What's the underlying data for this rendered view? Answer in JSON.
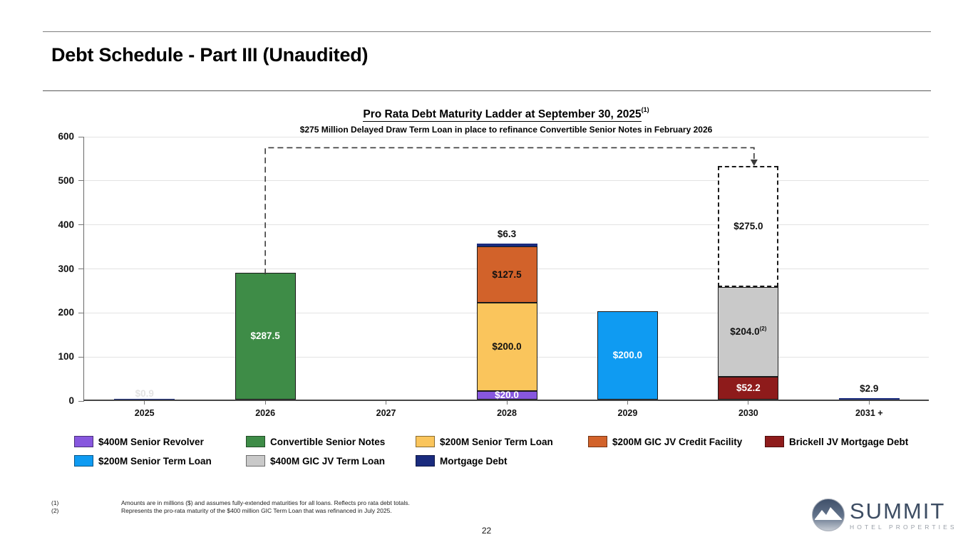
{
  "page": {
    "title": "Debt Schedule - Part III (Unaudited)",
    "page_number": "22",
    "footnotes": [
      {
        "marker": "(1)",
        "text": "Amounts are in millions ($) and assumes fully-extended maturities for all loans. Reflects pro rata debt totals."
      },
      {
        "marker": "(2)",
        "text": "Represents the pro-rata maturity of the $400 million GIC Term Loan that was refinanced in July 2025."
      }
    ],
    "logo": {
      "name": "SUMMIT",
      "subtitle": "HOTEL PROPERTIES"
    }
  },
  "chart_data": {
    "type": "bar",
    "stacked": true,
    "title": "Pro Rata Debt Maturity Ladder at September 30, 2025",
    "title_superscript": "(1)",
    "subtitle": "$275 Million Delayed Draw Term Loan in place to refinance Convertible Senior Notes in February 2026",
    "ylabel": "",
    "xlabel": "",
    "ylim": [
      0,
      600
    ],
    "yticks": [
      0,
      100,
      200,
      300,
      400,
      500,
      600
    ],
    "grid": "horizontal",
    "categories": [
      "2025",
      "2026",
      "2027",
      "2028",
      "2029",
      "2030",
      "2031 +"
    ],
    "bars": [
      {
        "category": "2025",
        "segments": [
          {
            "series": "Mortgage Debt",
            "value": 0.9,
            "color": "#1A2B7E",
            "label": "$0.9",
            "label_color": "#e3e3e3",
            "label_pos": "base"
          }
        ]
      },
      {
        "category": "2026",
        "segments": [
          {
            "series": "Convertible Senior Notes",
            "value": 287.5,
            "color": "#3E8C47",
            "label": "$287.5",
            "label_color": "#ffffff",
            "label_pos": "center"
          }
        ]
      },
      {
        "category": "2027",
        "segments": []
      },
      {
        "category": "2028",
        "segments": [
          {
            "series": "$400M Senior Revolver",
            "value": 20.0,
            "color": "#8757DE",
            "label": "$20.0",
            "label_color": "#ffffff",
            "label_pos": "center"
          },
          {
            "series": "$200M Senior Term Loan",
            "value": 200.0,
            "color": "#FAC55C",
            "label": "$200.0",
            "label_color": "#111111",
            "label_pos": "center"
          },
          {
            "series": "$200M GIC JV Credit Facility",
            "value": 127.5,
            "color": "#D2622A",
            "label": "$127.5",
            "label_color": "#111111",
            "label_pos": "center"
          },
          {
            "series": "Mortgage Debt",
            "value": 6.3,
            "color": "#1A2B7E",
            "label": "$6.3",
            "label_color": "#111111",
            "label_pos": "above"
          }
        ]
      },
      {
        "category": "2029",
        "segments": [
          {
            "series": "$200M Senior Term Loan",
            "value": 200.0,
            "color": "#0F9BF2",
            "label": "$200.0",
            "label_color": "#ffffff",
            "label_pos": "center"
          }
        ]
      },
      {
        "category": "2030",
        "segments": [
          {
            "series": "Brickell JV Mortgage Debt",
            "value": 52.2,
            "color": "#8E1B1B",
            "label": "$52.2",
            "label_color": "#ffffff",
            "label_pos": "center"
          },
          {
            "series": "$400M GIC JV Term Loan",
            "value": 204.0,
            "color": "#C9C9C9",
            "label": "$204.0",
            "label_sup": "(2)",
            "label_color": "#111111",
            "label_pos": "center"
          },
          {
            "series": "$275M Delayed Draw Term Loan",
            "value": 275.0,
            "color": "#ffffff",
            "style": "dashed",
            "label": "$275.0",
            "label_color": "#111111",
            "label_pos": "center"
          }
        ]
      },
      {
        "category": "2031 +",
        "segments": [
          {
            "series": "Mortgage Debt",
            "value": 2.9,
            "color": "#1A2B7E",
            "label": "$2.9",
            "label_color": "#111111",
            "label_pos": "above"
          }
        ]
      }
    ],
    "connector": {
      "from_category_index": 1,
      "from_value": 287.5,
      "elbow_value": 575,
      "to_category_index": 5,
      "to_value": 531.2,
      "to_x_offset": 8
    },
    "legend": {
      "position": "bottom-left",
      "rows": [
        [
          {
            "label": "$400M Senior Revolver",
            "color": "#8757DE"
          },
          {
            "label": "Convertible Senior Notes",
            "color": "#3E8C47"
          },
          {
            "label": "$200M Senior Term Loan",
            "color": "#FAC55C"
          },
          {
            "label": "$200M GIC JV Credit Facility",
            "color": "#D2622A"
          },
          {
            "label": "Brickell JV Mortgage Debt",
            "color": "#8E1B1B"
          }
        ],
        [
          {
            "label": "$200M Senior Term Loan",
            "color": "#0F9BF2"
          },
          {
            "label": "$400M GIC JV Term Loan",
            "color": "#C9C9C9"
          },
          {
            "label": "Mortgage Debt",
            "color": "#1A2B7E"
          }
        ]
      ]
    }
  }
}
